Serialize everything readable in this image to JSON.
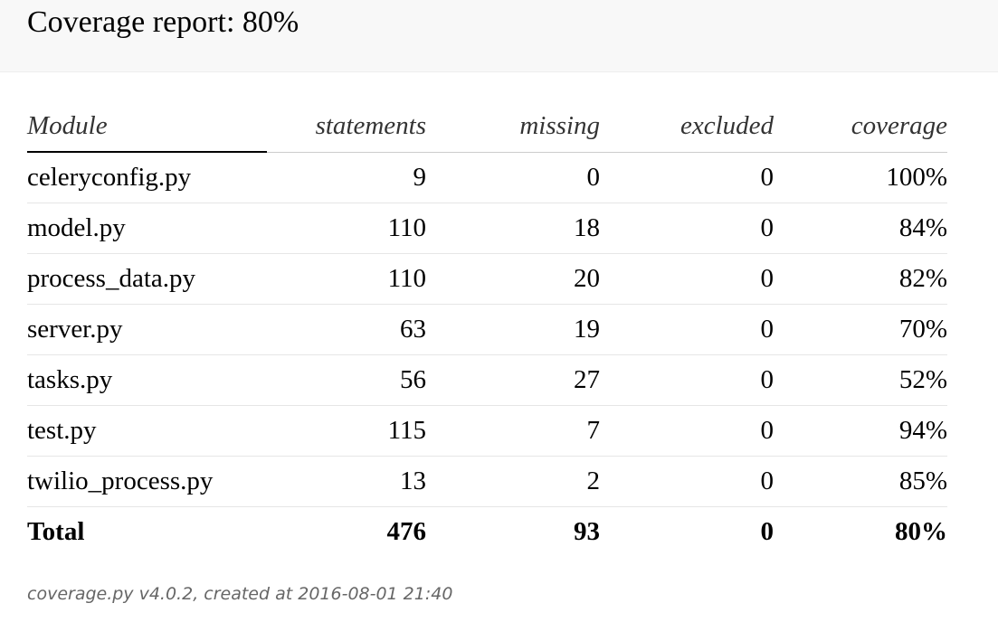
{
  "header": {
    "title": "Coverage report: 80%"
  },
  "table": {
    "columns": [
      "Module",
      "statements",
      "missing",
      "excluded",
      "coverage"
    ],
    "sorted_column": "Module",
    "rows": [
      {
        "module": "celeryconfig.py",
        "statements": "9",
        "missing": "0",
        "excluded": "0",
        "coverage": "100%"
      },
      {
        "module": "model.py",
        "statements": "110",
        "missing": "18",
        "excluded": "0",
        "coverage": "84%"
      },
      {
        "module": "process_data.py",
        "statements": "110",
        "missing": "20",
        "excluded": "0",
        "coverage": "82%"
      },
      {
        "module": "server.py",
        "statements": "63",
        "missing": "19",
        "excluded": "0",
        "coverage": "70%"
      },
      {
        "module": "tasks.py",
        "statements": "56",
        "missing": "27",
        "excluded": "0",
        "coverage": "52%"
      },
      {
        "module": "test.py",
        "statements": "115",
        "missing": "7",
        "excluded": "0",
        "coverage": "94%"
      },
      {
        "module": "twilio_process.py",
        "statements": "13",
        "missing": "2",
        "excluded": "0",
        "coverage": "85%"
      }
    ],
    "total": {
      "module": "Total",
      "statements": "476",
      "missing": "93",
      "excluded": "0",
      "coverage": "80%"
    }
  },
  "footer": {
    "tool_link": "coverage.py v4.0.2",
    "created_text": ", created at 2016-08-01 21:40"
  },
  "colors": {
    "header_background": "#f8f8f8",
    "text": "#000000",
    "footer_text": "#666666",
    "row_divider": "#e6e6e6"
  }
}
